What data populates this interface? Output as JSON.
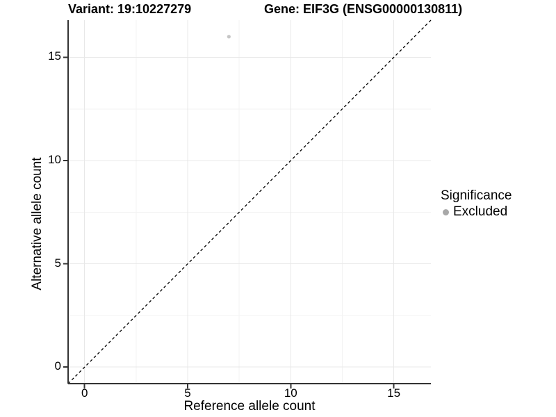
{
  "chart_data": {
    "type": "scatter",
    "title_variant": "Variant: 19:10227279",
    "title_gene": "Gene: EIF3G (ENSG00000130811)",
    "xlabel": "Reference allele count",
    "ylabel": "Alternative allele count",
    "xlim": [
      -0.8,
      16.8
    ],
    "ylim": [
      -0.8,
      16.8
    ],
    "xticks": [
      0,
      5,
      10,
      15
    ],
    "yticks": [
      0,
      5,
      10,
      15
    ],
    "xminor": [
      2.5,
      7.5,
      12.5
    ],
    "yminor": [
      2.5,
      7.5,
      12.5
    ],
    "grid": "major+minor",
    "axes_drawn": [
      "left",
      "bottom"
    ],
    "points": [
      {
        "x": 7,
        "y": 16,
        "series": "Excluded"
      }
    ],
    "reference_line": {
      "type": "identity",
      "style": "dashed",
      "x1": -0.8,
      "y1": -0.8,
      "x2": 16.8,
      "y2": 16.8
    },
    "legend": {
      "title": "Significance",
      "position": "right",
      "entries": [
        {
          "label": "Excluded",
          "color": "#a8a8a8"
        }
      ]
    }
  },
  "colors": {
    "background": "#ffffff",
    "axis_line": "#333333",
    "grid_major": "#e8e8e8",
    "grid_minor": "#f3f3f3",
    "point": "#c6c6c6",
    "ref_line": "#000000",
    "text": "#000000"
  }
}
